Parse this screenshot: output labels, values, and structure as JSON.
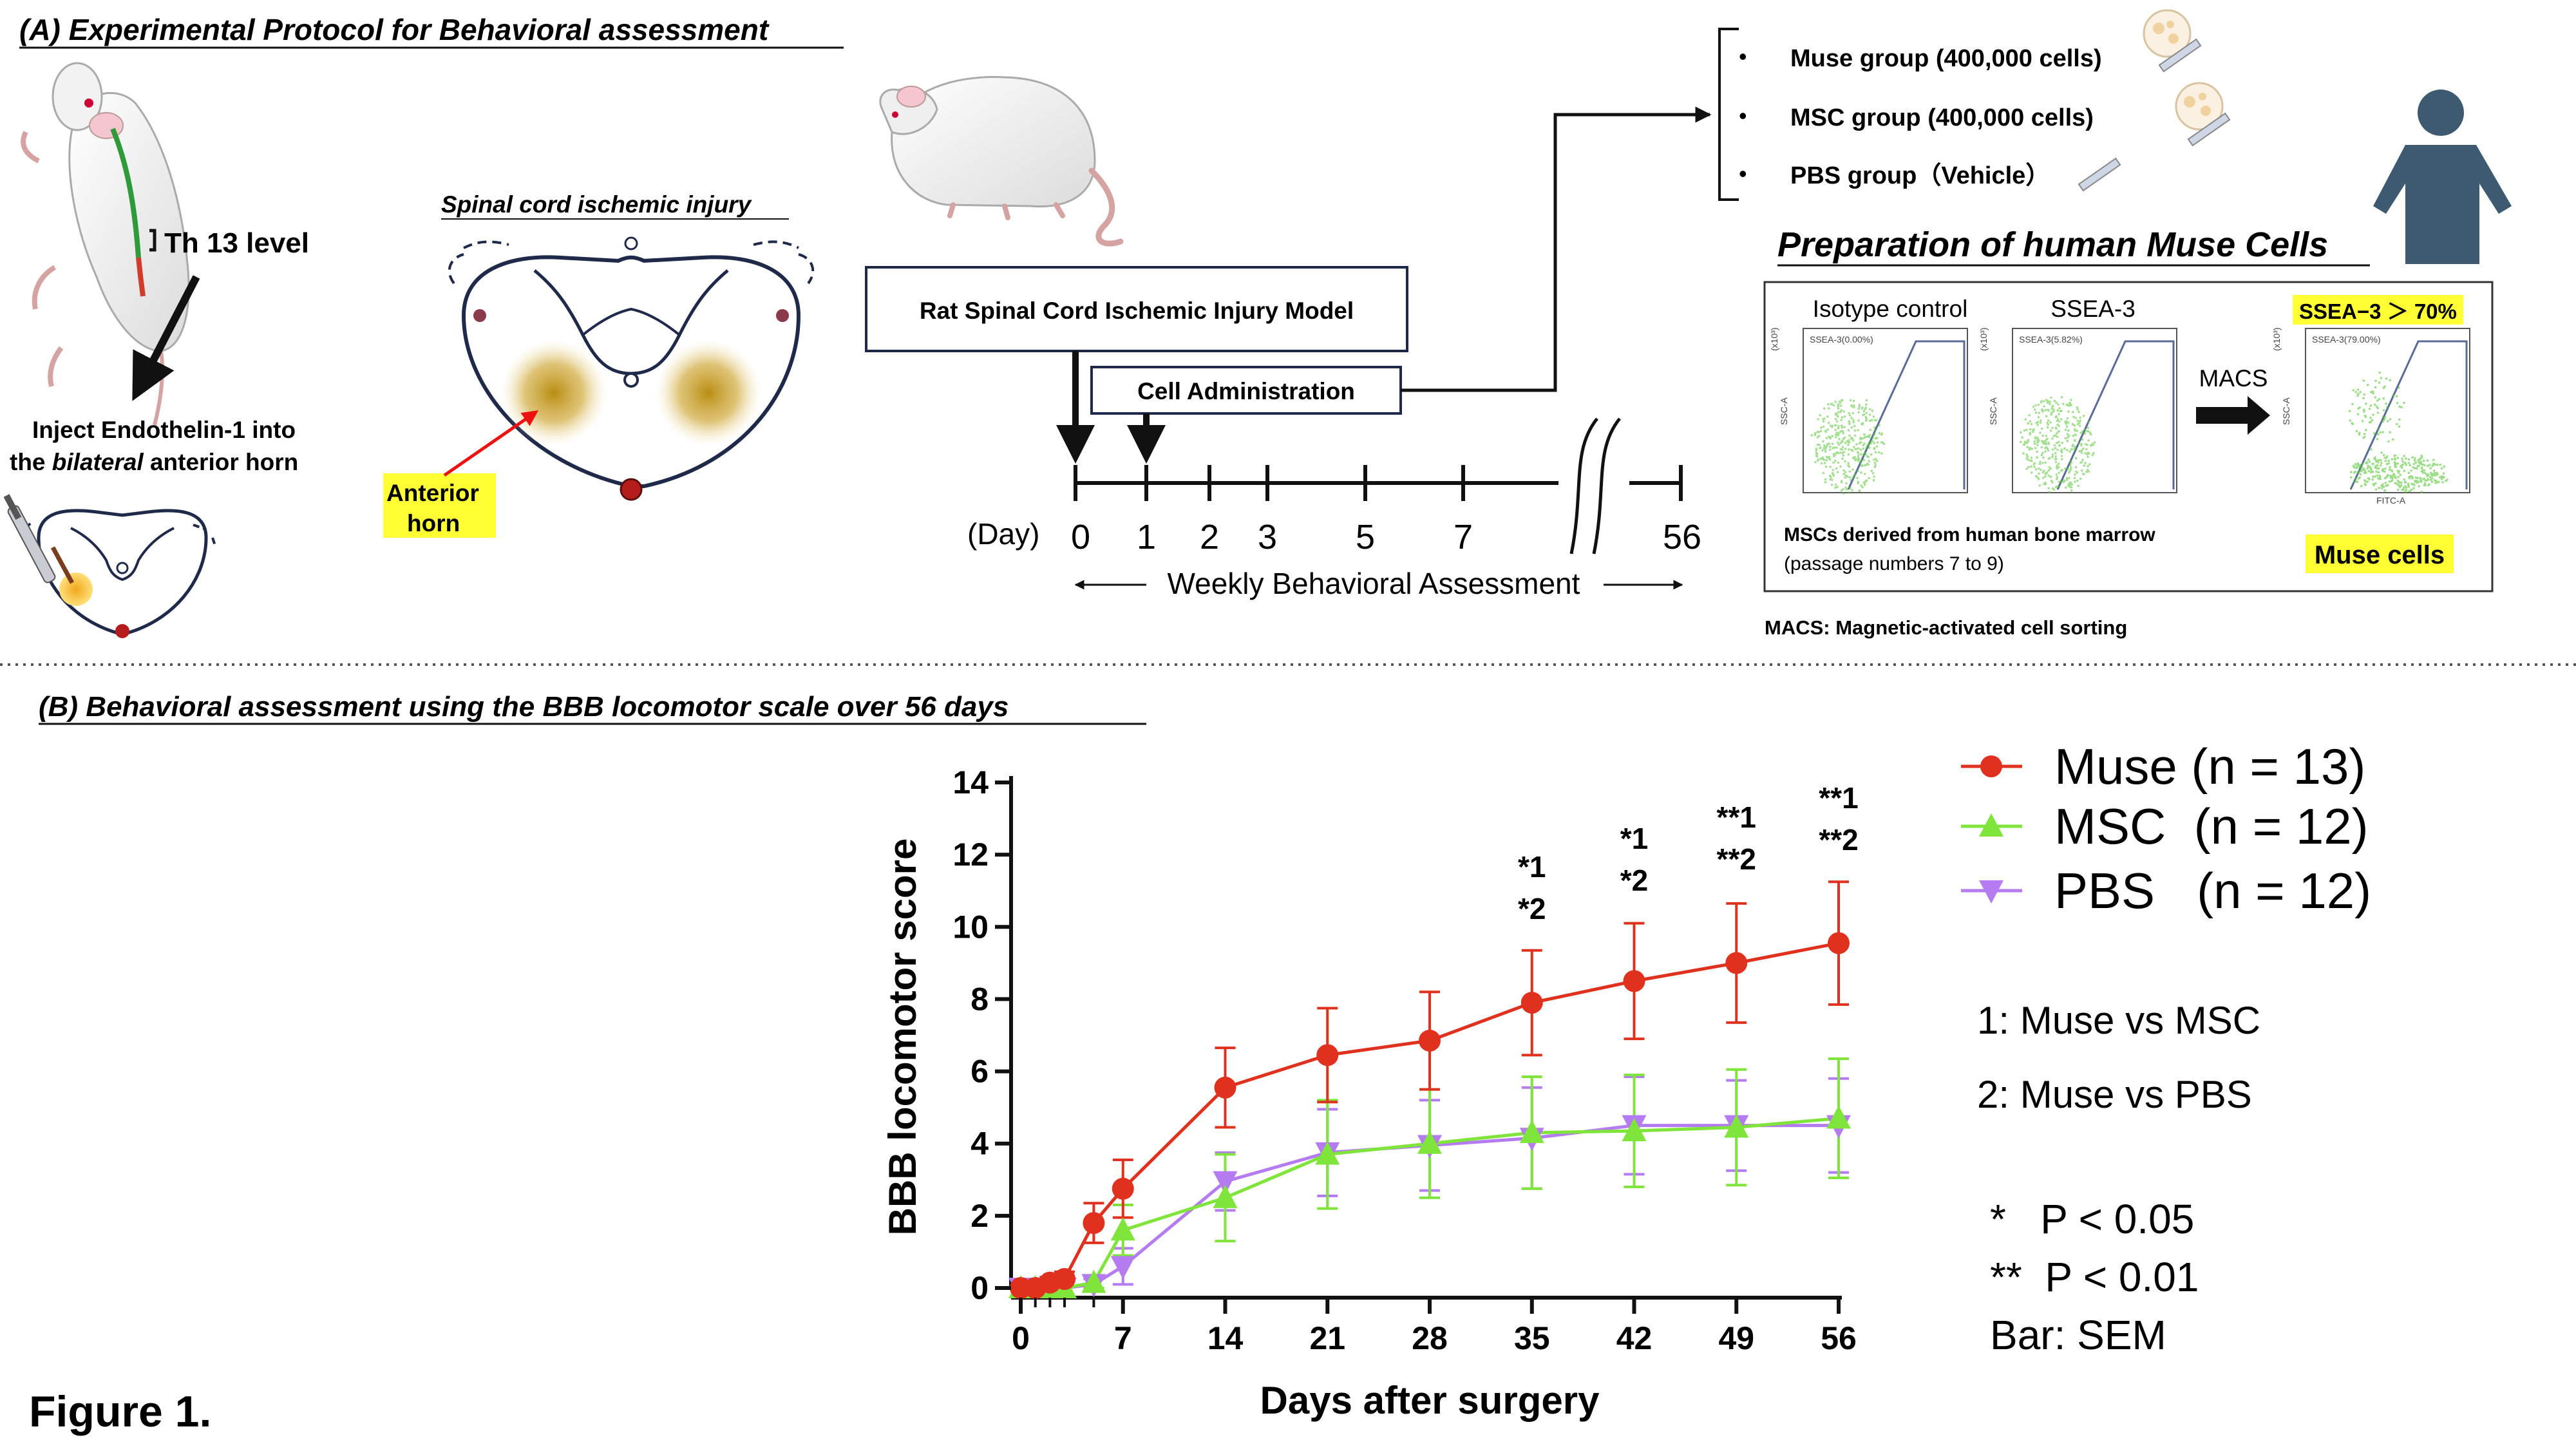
{
  "panel_a": {
    "title": "(A) Experimental Protocol for Behavioral assessment",
    "th13_label": "Th 13 level",
    "inject_line1": "Inject Endothelin-1 into",
    "inject_the": "the ",
    "inject_bilateral": "bilateral",
    "inject_rest": " anterior horn",
    "spinal_title": "Spinal cord ischemic injury",
    "anterior_horn_line1": "Anterior",
    "anterior_horn_line2": "horn",
    "model_box": "Rat Spinal Cord Ischemic Injury Model",
    "admin_box": "Cell Administration",
    "day_label": "(Day)",
    "days": [
      "0",
      "1",
      "2",
      "3",
      "5",
      "7",
      "56"
    ],
    "weekly": "Weekly Behavioral Assessment",
    "groups": [
      "Muse group (400,000 cells)",
      "MSC group (400,000 cells)",
      "PBS group（Vehicle）"
    ],
    "prep_title": "Preparation of human Muse Cells",
    "iso_label": "Isotype control",
    "ssea_label": "SSEA-3",
    "ssea_pct": "SSEA−3 ＞ 70%",
    "macs_label": "MACS",
    "msc_derived": "MSCs derived from human bone marrow",
    "passage": "(passage numbers 7 to 9)",
    "muse_cells": "Muse cells",
    "macs_full": "MACS: Magnetic-activated cell sorting",
    "facs_gate_iso": "SSEA-3(0.00%)",
    "facs_gate_ssea": "SSEA-3(5.82%)",
    "facs_gate_sorted": "SSEA-3(79.00%)",
    "facs_y": "SSC-A",
    "facs_x": "FITC-A",
    "facs_scale": "(x10³)"
  },
  "panel_b": {
    "title": "(B) Behavioral assessment using the BBB locomotor scale over 56 days",
    "key1": "1: Muse vs MSC",
    "key2": "2: Muse vs PBS",
    "sig1": "*   P < 0.05",
    "sig2": "**  P < 0.01",
    "bar_note": "Bar: SEM"
  },
  "figure_label": "Figure 1.",
  "colors": {
    "muse": "#e0301e",
    "msc": "#7fe53a",
    "pbs": "#b57bf0",
    "highlight": "#ffff33",
    "navy": "#1f2a4a"
  },
  "chart_data": {
    "type": "line",
    "xlabel": "Days after surgery",
    "ylabel": "BBB locomotor score",
    "xlim": [
      0,
      56
    ],
    "ylim": [
      0,
      14
    ],
    "x_ticks": [
      0,
      7,
      14,
      21,
      28,
      35,
      42,
      49,
      56
    ],
    "y_ticks": [
      0,
      2,
      4,
      6,
      8,
      10,
      12,
      14
    ],
    "legend_position": "top-right",
    "series": [
      {
        "name": "Muse (n = 13)",
        "color": "#e0301e",
        "marker": "circle",
        "x": [
          0,
          1,
          2,
          3,
          5,
          7,
          14,
          21,
          28,
          35,
          42,
          49,
          56
        ],
        "y": [
          0,
          0,
          0.15,
          0.25,
          1.8,
          2.75,
          5.55,
          6.45,
          6.85,
          7.9,
          8.5,
          9.0,
          9.55
        ],
        "sem": [
          0.05,
          0.05,
          0.15,
          0.2,
          0.55,
          0.8,
          1.1,
          1.3,
          1.35,
          1.45,
          1.6,
          1.65,
          1.7
        ]
      },
      {
        "name": "MSC  (n = 12)",
        "color": "#7fe53a",
        "marker": "triangle-up",
        "x": [
          0,
          1,
          2,
          3,
          5,
          7,
          14,
          21,
          28,
          35,
          42,
          49,
          56
        ],
        "y": [
          0,
          0,
          0,
          0,
          0.15,
          1.6,
          2.5,
          3.7,
          4.0,
          4.3,
          4.35,
          4.45,
          4.7
        ],
        "sem": [
          0,
          0,
          0,
          0.05,
          0.2,
          0.7,
          1.2,
          1.5,
          1.5,
          1.55,
          1.55,
          1.6,
          1.65
        ]
      },
      {
        "name": "PBS   (n = 12)",
        "color": "#b57bf0",
        "marker": "triangle-down",
        "x": [
          0,
          1,
          2,
          3,
          5,
          7,
          14,
          21,
          28,
          35,
          42,
          49,
          56
        ],
        "y": [
          0,
          0,
          0,
          0,
          0.1,
          0.6,
          2.95,
          3.75,
          3.95,
          4.15,
          4.5,
          4.5,
          4.5
        ],
        "sem": [
          0,
          0,
          0,
          0.05,
          0.15,
          0.5,
          0.8,
          1.2,
          1.25,
          1.4,
          1.35,
          1.25,
          1.3
        ]
      }
    ],
    "annotations": [
      {
        "x": 35,
        "lines": [
          "*1",
          "*2"
        ]
      },
      {
        "x": 42,
        "lines": [
          "*1",
          "*2"
        ]
      },
      {
        "x": 49,
        "lines": [
          "**1",
          "**2"
        ]
      },
      {
        "x": 56,
        "lines": [
          "**1",
          "**2"
        ]
      }
    ]
  }
}
